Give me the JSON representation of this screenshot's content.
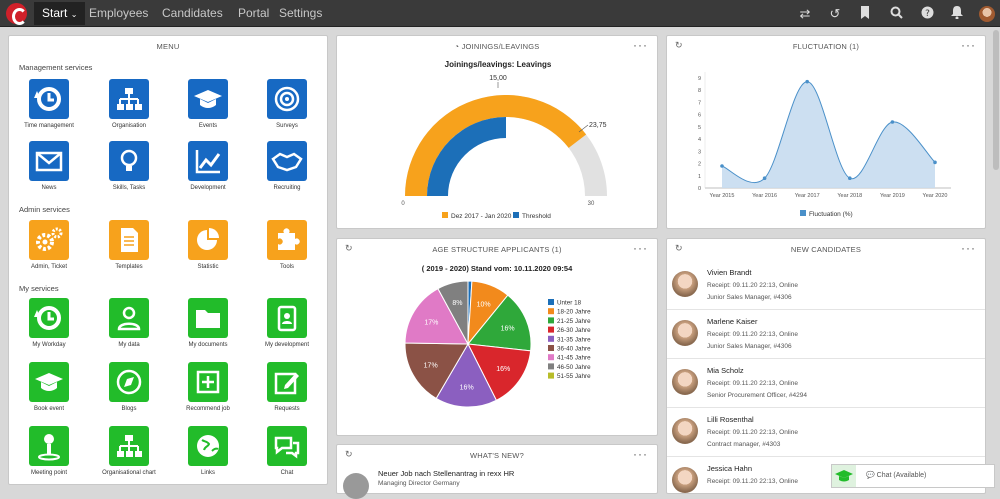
{
  "topbar": {
    "start": "Start",
    "nav": [
      "Employees",
      "Candidates",
      "Portal",
      "Settings"
    ]
  },
  "menu": {
    "title": "MENU",
    "sections": [
      {
        "title": "Management services",
        "items": [
          {
            "label": "Time management",
            "icon": "clock-history-icon",
            "color": "blue"
          },
          {
            "label": "Organisation",
            "icon": "org-chart-icon",
            "color": "blue"
          },
          {
            "label": "Events",
            "icon": "graduation-cap-icon",
            "color": "blue"
          },
          {
            "label": "Surveys",
            "icon": "target-icon",
            "color": "blue"
          },
          {
            "label": "News",
            "icon": "envelope-icon",
            "color": "blue"
          },
          {
            "label": "Skills, Tasks",
            "icon": "lightbulb-icon",
            "color": "blue"
          },
          {
            "label": "Development",
            "icon": "line-chart-icon",
            "color": "blue"
          },
          {
            "label": "Recruiting",
            "icon": "handshake-icon",
            "color": "blue"
          }
        ]
      },
      {
        "title": "Admin services",
        "items": [
          {
            "label": "Admin, Ticket",
            "icon": "gears-icon",
            "color": "orange"
          },
          {
            "label": "Templates",
            "icon": "document-icon",
            "color": "orange"
          },
          {
            "label": "Statistic",
            "icon": "pie-chart-icon",
            "color": "orange"
          },
          {
            "label": "Tools",
            "icon": "puzzle-icon",
            "color": "orange"
          }
        ]
      },
      {
        "title": "My services",
        "items": [
          {
            "label": "My Workday",
            "icon": "clock-history-icon",
            "color": "green"
          },
          {
            "label": "My data",
            "icon": "user-icon",
            "color": "green"
          },
          {
            "label": "My documents",
            "icon": "folder-icon",
            "color": "green"
          },
          {
            "label": "My development",
            "icon": "id-badge-icon",
            "color": "green"
          },
          {
            "label": "Book event",
            "icon": "graduation-cap-icon",
            "color": "green"
          },
          {
            "label": "Blogs",
            "icon": "compass-icon",
            "color": "green"
          },
          {
            "label": "Recommend job",
            "icon": "plus-square-icon",
            "color": "green"
          },
          {
            "label": "Requests",
            "icon": "edit-icon",
            "color": "green"
          },
          {
            "label": "Meeting point",
            "icon": "map-pin-icon",
            "color": "green"
          },
          {
            "label": "Organisational chart",
            "icon": "org-chart-icon",
            "color": "green"
          },
          {
            "label": "Links",
            "icon": "globe-icon",
            "color": "green"
          },
          {
            "label": "Chat",
            "icon": "chat-icon",
            "color": "green"
          }
        ]
      }
    ],
    "colors": {
      "blue": "#1769c3",
      "orange": "#f7a21c",
      "green": "#22bc2a"
    }
  },
  "joinings": {
    "title": "JOININGS/LEAVINGS",
    "chart_title": "Joinings/leavings: Leavings",
    "value_label": "15,00",
    "threshold_label": "23,75",
    "min_label": "0",
    "max_label": "30",
    "legend": [
      "Dez 2017 - Jan 2020",
      "Threshold"
    ]
  },
  "fluctuation": {
    "title": "FLUCTUATION (1)",
    "legend": "Fluctuation (%)"
  },
  "age": {
    "title": "AGE STRUCTURE APPLICANTS (1)",
    "chart_title": "( 2019 - 2020) Stand vom: 10.11.2020 09:54"
  },
  "candidates": {
    "title": "NEW CANDIDATES",
    "items": [
      {
        "name": "Vivien Brandt",
        "receipt": "Receipt: 09.11.20 22:13, Online",
        "position": "Junior Sales Manager, #4306"
      },
      {
        "name": "Marlene Kaiser",
        "receipt": "Receipt: 09.11.20 22:13, Online",
        "position": "Junior Sales Manager, #4306"
      },
      {
        "name": "Mia Scholz",
        "receipt": "Receipt: 09.11.20 22:13, Online",
        "position": "Senior Procurement Officer, #4294"
      },
      {
        "name": "Lilli Rosenthal",
        "receipt": "Receipt: 09.11.20 22:13, Online",
        "position": "Contract manager, #4303"
      },
      {
        "name": "Jessica Hahn",
        "receipt": "Receipt: 09.11.20 22:13, Online",
        "position": ""
      }
    ]
  },
  "news": {
    "title": "WHAT'S NEW?",
    "headline": "Neuer Job nach Stellenantrag in rexx HR",
    "subtitle": "Managing Director Germany"
  },
  "chat": {
    "label": "Chat (Available)"
  },
  "chart_data": [
    {
      "type": "gauge",
      "title": "Joinings/leavings: Leavings",
      "value": 15,
      "threshold": 23.75,
      "min": 0,
      "max": 30,
      "series": [
        {
          "name": "Dez 2017 - Jan 2020",
          "color": "#1c6fb8"
        },
        {
          "name": "Threshold",
          "color": "#f7a21c"
        }
      ]
    },
    {
      "type": "area",
      "categories": [
        "Year 2015",
        "Year 2016",
        "Year 2017",
        "Year 2018",
        "Year 2019",
        "Year 2020"
      ],
      "ylim": [
        0,
        9
      ],
      "yticks": [
        0,
        1,
        2,
        3,
        4,
        5,
        6,
        7,
        8,
        9
      ],
      "series": [
        {
          "name": "Fluctuation (%)",
          "values": [
            1.8,
            0.8,
            8.7,
            0.8,
            5.4,
            2.1
          ],
          "color": "#4a90c9"
        }
      ]
    },
    {
      "type": "pie",
      "title": "( 2019 - 2020) Stand vom: 10.11.2020 09:54",
      "categories": [
        "Unter 18",
        "18-20 Jahre",
        "21-25 Jahre",
        "26-30 Jahre",
        "31-35 Jahre",
        "36-40 Jahre",
        "41-45 Jahre",
        "46-50 Jahre",
        "51-55 Jahre"
      ],
      "values": [
        1,
        10,
        16,
        16,
        16,
        17,
        17,
        8,
        0
      ],
      "labels": [
        "",
        "10%",
        "16%",
        "16%",
        "16%",
        "17%",
        "17%",
        "8%",
        ""
      ],
      "colors": [
        "#1c6fb8",
        "#f28a1c",
        "#2fa83a",
        "#d9262c",
        "#8b5fc0",
        "#8b5246",
        "#e07ac6",
        "#808080",
        "#b8bd2a"
      ]
    }
  ]
}
